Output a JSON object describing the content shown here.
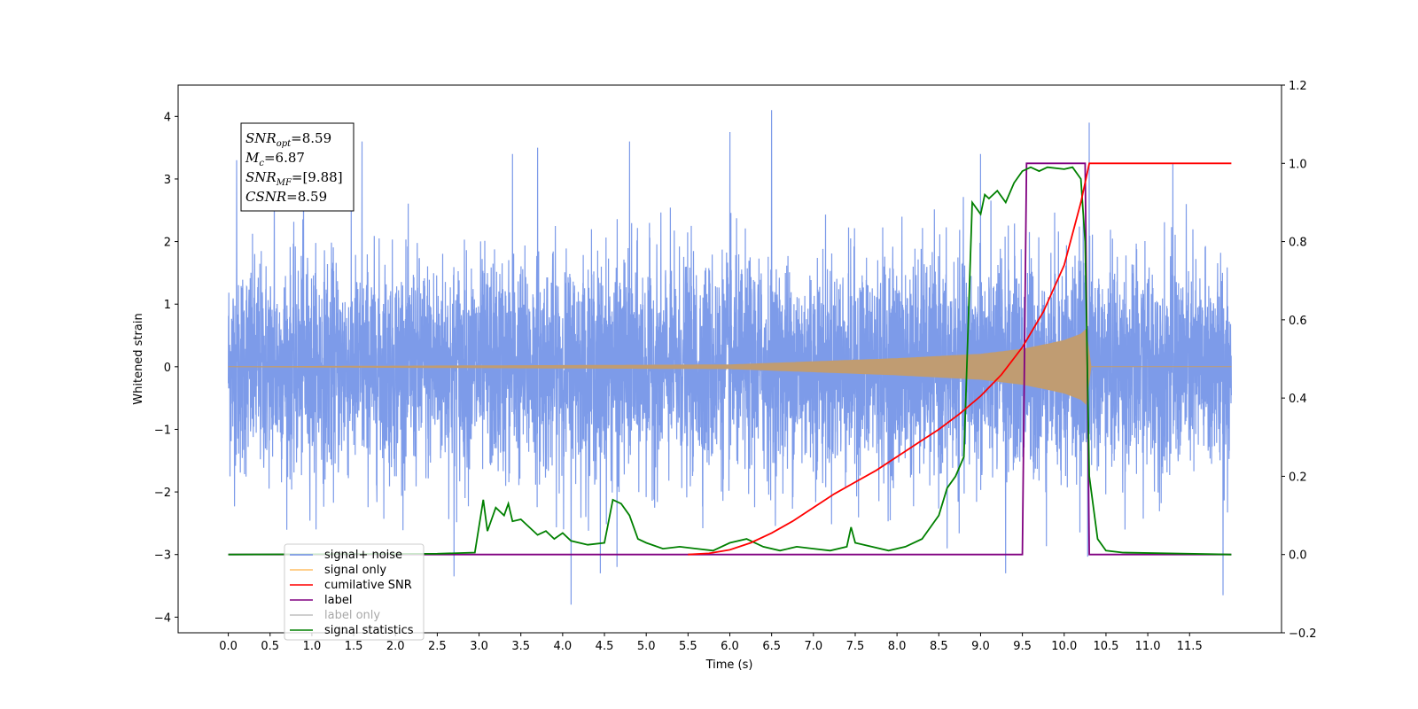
{
  "chart_data": {
    "type": "line",
    "xlabel": "Time (s)",
    "ylabel": "Whitened strain",
    "xlim": [
      -0.6,
      12.6
    ],
    "ylim": [
      -4.25,
      4.5
    ],
    "y2lim": [
      -0.2,
      1.2
    ],
    "x_ticks": [
      "0.0",
      "0.5",
      "1.0",
      "1.5",
      "2.0",
      "2.5",
      "3.0",
      "3.5",
      "4.0",
      "4.5",
      "5.0",
      "5.5",
      "6.0",
      "6.5",
      "7.0",
      "7.5",
      "8.0",
      "8.5",
      "9.0",
      "9.5",
      "10.0",
      "10.5",
      "11.0",
      "11.5"
    ],
    "y_ticks": [
      "−4",
      "−3",
      "−2",
      "−1",
      "0",
      "1",
      "2",
      "3",
      "4"
    ],
    "y2_ticks": [
      "−0.2",
      "0.0",
      "0.2",
      "0.4",
      "0.6",
      "0.8",
      "1.0",
      "1.2"
    ],
    "annotation": {
      "lines": [
        {
          "base": "SNR",
          "sub": "opt",
          "value": "=8.59"
        },
        {
          "base": "M",
          "sub": "c",
          "value": "=6.87"
        },
        {
          "base": "SNR",
          "sub": "MF",
          "value": "=[9.88]"
        },
        {
          "base": "CSNR",
          "sub": "",
          "value": "=8.59"
        }
      ]
    },
    "legend": {
      "placement": "lower-left",
      "entries": [
        {
          "label": "signal+ noise",
          "color": "#6f8ee6"
        },
        {
          "label": "signal only",
          "color": "#ffbf66"
        },
        {
          "label": "cumilative SNR",
          "color": "#ff0000"
        },
        {
          "label": "label",
          "color": "#800080"
        },
        {
          "label": "label only",
          "color": "#808080"
        },
        {
          "label": "signal statistics",
          "color": "#008000"
        }
      ]
    },
    "series": [
      {
        "name": "signal+ noise",
        "axis": "left",
        "color": "#7696e8",
        "noise_std": 0.85,
        "x_start": 0.0,
        "x_end": 12.0,
        "spikes": [
          {
            "x": 0.1,
            "y": 3.3
          },
          {
            "x": 0.55,
            "y": 2.9
          },
          {
            "x": 0.9,
            "y": 2.9
          },
          {
            "x": 1.6,
            "y": 3.6
          },
          {
            "x": 2.7,
            "y": -3.35
          },
          {
            "x": 3.4,
            "y": 3.4
          },
          {
            "x": 3.7,
            "y": 3.5
          },
          {
            "x": 4.1,
            "y": -3.8
          },
          {
            "x": 4.45,
            "y": -3.3
          },
          {
            "x": 4.65,
            "y": -3.2
          },
          {
            "x": 4.8,
            "y": 3.6
          },
          {
            "x": 6.0,
            "y": 3.75
          },
          {
            "x": 6.5,
            "y": 4.1
          },
          {
            "x": 8.6,
            "y": -2.9
          },
          {
            "x": 9.0,
            "y": 3.4
          },
          {
            "x": 9.3,
            "y": -3.3
          },
          {
            "x": 10.3,
            "y": 3.9
          },
          {
            "x": 10.3,
            "y": -3.15
          },
          {
            "x": 11.3,
            "y": 3.25
          },
          {
            "x": 11.9,
            "y": -3.65
          }
        ]
      },
      {
        "name": "signal only",
        "axis": "left",
        "color": "#c09c72",
        "envelope": {
          "x": [
            0.0,
            6.0,
            7.0,
            8.0,
            9.0,
            9.5,
            9.8,
            10.0,
            10.2,
            10.28,
            10.3,
            12.0
          ],
          "amp": [
            0.0,
            0.03,
            0.08,
            0.13,
            0.2,
            0.28,
            0.36,
            0.42,
            0.52,
            0.62,
            0.0,
            0.0
          ]
        }
      },
      {
        "name": "cumilative SNR",
        "axis": "right",
        "color": "#ff0000",
        "x": [
          5.5,
          5.75,
          6.0,
          6.25,
          6.5,
          6.75,
          7.0,
          7.25,
          7.5,
          7.75,
          8.0,
          8.25,
          8.5,
          8.75,
          9.0,
          9.25,
          9.5,
          9.75,
          10.0,
          10.2,
          10.3,
          12.0
        ],
        "y": [
          0.0,
          0.003,
          0.012,
          0.03,
          0.055,
          0.085,
          0.12,
          0.155,
          0.185,
          0.215,
          0.25,
          0.285,
          0.32,
          0.36,
          0.405,
          0.46,
          0.53,
          0.62,
          0.74,
          0.9,
          1.0,
          1.0
        ]
      },
      {
        "name": "label",
        "axis": "right",
        "color": "#800080",
        "x": [
          0.0,
          9.5,
          9.55,
          10.25,
          10.3,
          12.0
        ],
        "y": [
          0.0,
          0.0,
          1.0,
          1.0,
          0.0,
          0.0
        ]
      },
      {
        "name": "signal statistics",
        "axis": "right",
        "color": "#008000",
        "x": [
          0.0,
          2.5,
          2.95,
          3.05,
          3.1,
          3.15,
          3.2,
          3.3,
          3.35,
          3.4,
          3.5,
          3.7,
          3.8,
          3.9,
          4.0,
          4.1,
          4.3,
          4.5,
          4.6,
          4.7,
          4.8,
          4.9,
          5.0,
          5.2,
          5.4,
          5.6,
          5.8,
          6.0,
          6.2,
          6.4,
          6.6,
          6.8,
          7.0,
          7.2,
          7.4,
          7.45,
          7.5,
          7.7,
          7.9,
          8.1,
          8.3,
          8.5,
          8.6,
          8.7,
          8.8,
          8.9,
          9.0,
          9.05,
          9.1,
          9.2,
          9.3,
          9.4,
          9.5,
          9.6,
          9.7,
          9.8,
          10.0,
          10.1,
          10.2,
          10.25,
          10.3,
          10.4,
          10.5,
          10.7,
          12.0
        ],
        "y": [
          0.0,
          0.002,
          0.005,
          0.14,
          0.06,
          0.09,
          0.12,
          0.1,
          0.13,
          0.085,
          0.09,
          0.05,
          0.06,
          0.04,
          0.055,
          0.035,
          0.025,
          0.03,
          0.14,
          0.13,
          0.1,
          0.04,
          0.03,
          0.015,
          0.02,
          0.015,
          0.01,
          0.03,
          0.04,
          0.02,
          0.01,
          0.02,
          0.015,
          0.01,
          0.02,
          0.07,
          0.03,
          0.02,
          0.01,
          0.02,
          0.04,
          0.1,
          0.17,
          0.2,
          0.25,
          0.9,
          0.87,
          0.92,
          0.91,
          0.93,
          0.9,
          0.95,
          0.98,
          0.99,
          0.98,
          0.99,
          0.985,
          0.99,
          0.96,
          0.8,
          0.2,
          0.04,
          0.01,
          0.005,
          0.0
        ]
      }
    ]
  }
}
